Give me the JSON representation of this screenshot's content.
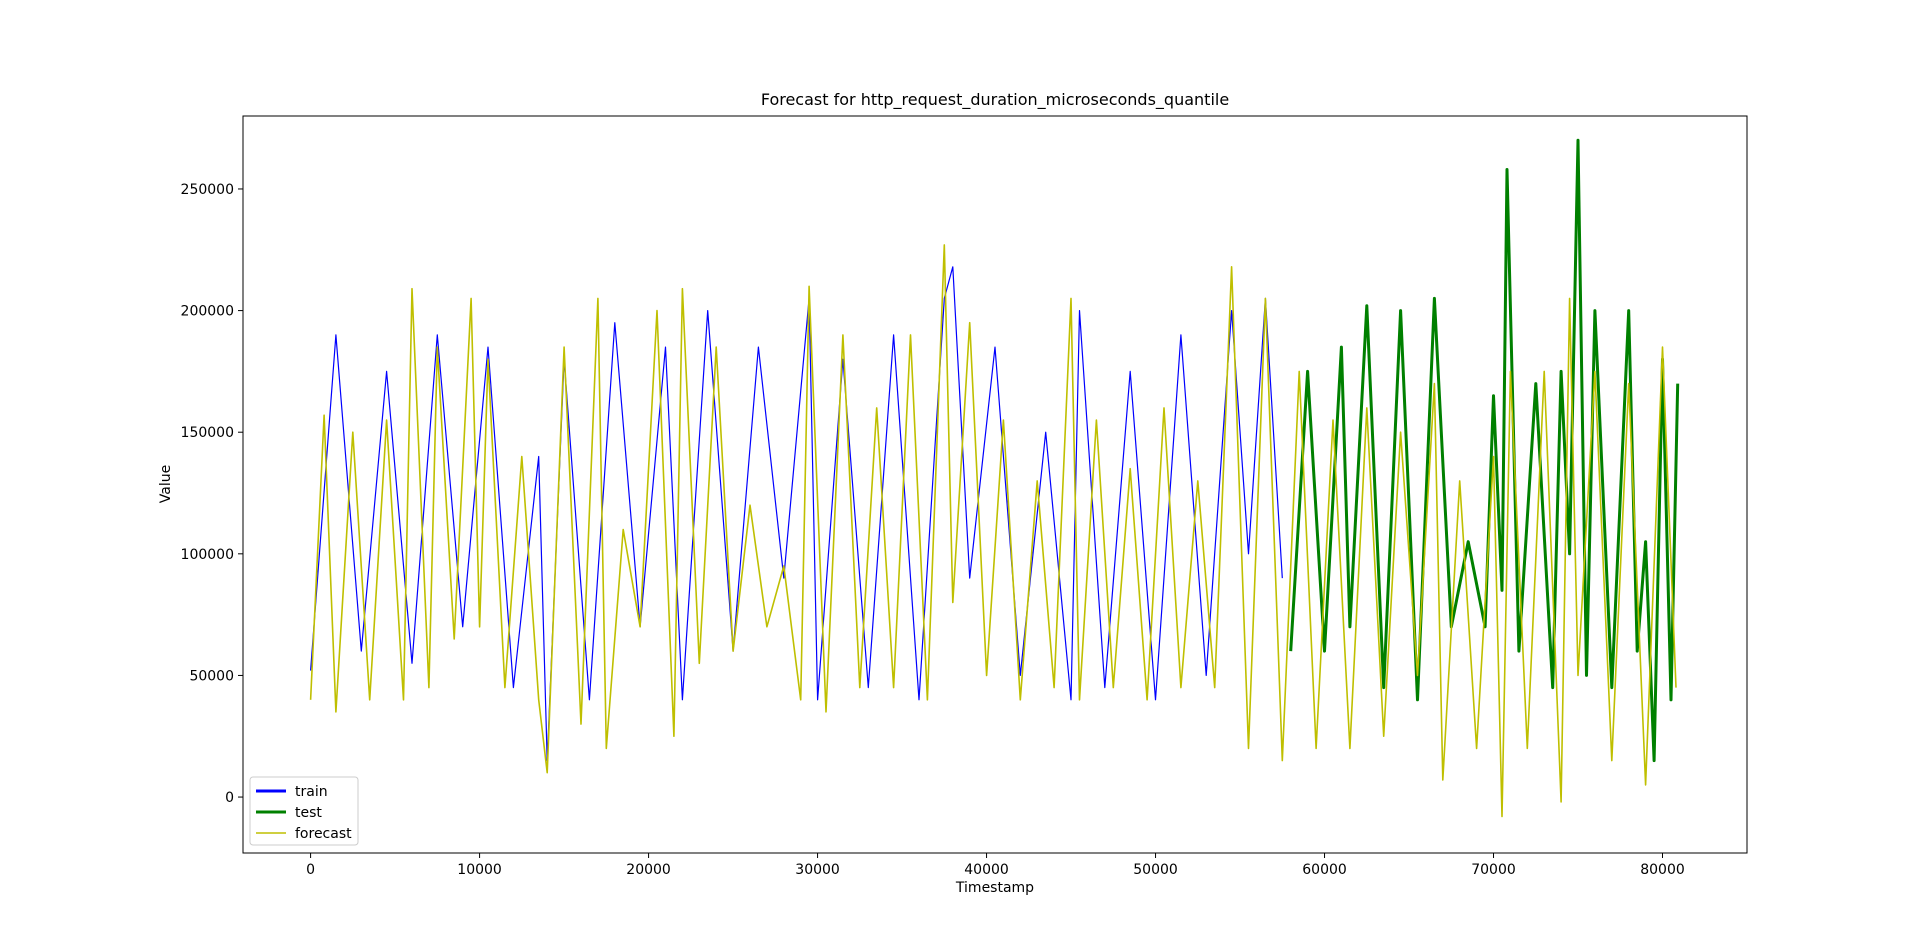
{
  "chart_data": {
    "type": "line",
    "title": "Forecast for http_request_duration_microseconds_quantile",
    "xlabel": "Timestamp",
    "ylabel": "Value",
    "xlim": [
      -4000,
      85000
    ],
    "ylim": [
      -23000,
      280000
    ],
    "xticks": [
      0,
      10000,
      20000,
      30000,
      40000,
      50000,
      60000,
      70000,
      80000
    ],
    "xtick_labels": [
      "0",
      "10000",
      "20000",
      "30000",
      "40000",
      "50000",
      "60000",
      "70000",
      "80000"
    ],
    "yticks": [
      0,
      50000,
      100000,
      150000,
      200000,
      250000
    ],
    "ytick_labels": [
      "0",
      "50000",
      "100000",
      "150000",
      "200000",
      "250000"
    ],
    "grid": false,
    "legend_position": "lower left",
    "series": [
      {
        "name": "train",
        "color": "#0000ff",
        "x": [
          0,
          1500,
          3000,
          4500,
          6000,
          7500,
          9000,
          10500,
          12000,
          13500,
          14000,
          15000,
          16500,
          18000,
          19500,
          21000,
          22000,
          23500,
          25000,
          26500,
          28000,
          29500,
          30000,
          31500,
          33000,
          34500,
          36000,
          37500,
          38000,
          39000,
          40500,
          42000,
          43500,
          45000,
          45500,
          47000,
          48500,
          50000,
          51500,
          53000,
          54500,
          55500,
          56500,
          57500
        ],
        "y": [
          52000,
          190000,
          60000,
          175000,
          55000,
          190000,
          70000,
          185000,
          45000,
          140000,
          15000,
          180000,
          40000,
          195000,
          70000,
          185000,
          40000,
          200000,
          60000,
          185000,
          90000,
          205000,
          40000,
          180000,
          45000,
          190000,
          40000,
          205000,
          218000,
          90000,
          185000,
          50000,
          150000,
          40000,
          200000,
          45000,
          175000,
          40000,
          190000,
          50000,
          200000,
          100000,
          205000,
          90000
        ]
      },
      {
        "name": "test",
        "color": "#008000",
        "x": [
          58000,
          59000,
          60000,
          61000,
          61500,
          62500,
          63500,
          64500,
          65500,
          66500,
          67500,
          68500,
          69500,
          70000,
          70500,
          70800,
          71500,
          72500,
          73500,
          74000,
          74500,
          75000,
          75500,
          76000,
          77000,
          78000,
          78500,
          79000,
          79500,
          80000,
          80500,
          80900
        ],
        "y": [
          60000,
          175000,
          60000,
          185000,
          70000,
          202000,
          45000,
          200000,
          40000,
          205000,
          70000,
          105000,
          70000,
          165000,
          85000,
          258000,
          60000,
          170000,
          45000,
          175000,
          100000,
          270000,
          50000,
          200000,
          45000,
          200000,
          60000,
          105000,
          15000,
          180000,
          40000,
          170000
        ]
      },
      {
        "name": "forecast",
        "color": "#bfbf00",
        "x": [
          0,
          800,
          1500,
          2500,
          3500,
          4500,
          5500,
          6000,
          7000,
          7500,
          8500,
          9500,
          10000,
          10500,
          11500,
          12500,
          13500,
          14000,
          15000,
          16000,
          17000,
          17500,
          18500,
          19500,
          20500,
          21500,
          22000,
          23000,
          24000,
          25000,
          26000,
          27000,
          28000,
          29000,
          29500,
          30500,
          31500,
          32500,
          33500,
          34500,
          35500,
          36500,
          37500,
          38000,
          39000,
          40000,
          41000,
          42000,
          43000,
          44000,
          45000,
          45500,
          46500,
          47500,
          48500,
          49500,
          50500,
          51500,
          52500,
          53500,
          54500,
          55500,
          56500,
          57500,
          58500,
          59500,
          60500,
          61500,
          62500,
          63500,
          64500,
          65500,
          66500,
          67000,
          68000,
          69000,
          70000,
          70500,
          71000,
          72000,
          73000,
          74000,
          74500,
          75000,
          76000,
          77000,
          78000,
          79000,
          80000,
          80800
        ],
        "y": [
          40000,
          157000,
          35000,
          150000,
          40000,
          155000,
          40000,
          209000,
          45000,
          185000,
          65000,
          205000,
          70000,
          180000,
          45000,
          140000,
          40000,
          10000,
          185000,
          30000,
          205000,
          20000,
          110000,
          70000,
          200000,
          25000,
          209000,
          55000,
          185000,
          60000,
          120000,
          70000,
          95000,
          40000,
          210000,
          35000,
          190000,
          45000,
          160000,
          45000,
          190000,
          40000,
          227000,
          80000,
          195000,
          50000,
          155000,
          40000,
          130000,
          45000,
          205000,
          40000,
          155000,
          45000,
          135000,
          40000,
          160000,
          45000,
          130000,
          45000,
          218000,
          20000,
          205000,
          15000,
          175000,
          20000,
          155000,
          20000,
          160000,
          25000,
          150000,
          50000,
          170000,
          7000,
          130000,
          20000,
          140000,
          -8000,
          175000,
          20000,
          175000,
          -2000,
          205000,
          50000,
          175000,
          15000,
          170000,
          5000,
          185000,
          45000
        ]
      }
    ]
  }
}
